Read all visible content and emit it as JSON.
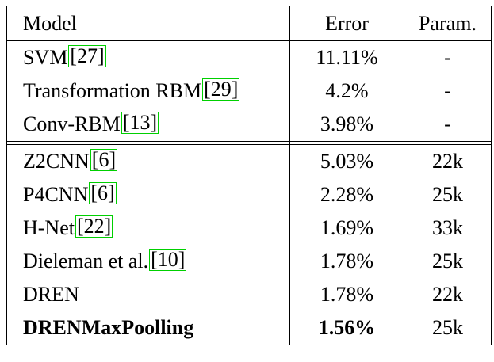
{
  "header": {
    "model": "Model",
    "error": "Error",
    "param": "Param."
  },
  "group1": [
    {
      "name": "SVM",
      "cite": "27",
      "error": "11.11%",
      "param": "-"
    },
    {
      "name": "Transformation RBM",
      "cite": "29",
      "error": "4.2%",
      "param": "-"
    },
    {
      "name": "Conv-RBM",
      "cite": "13",
      "error": "3.98%",
      "param": "-"
    }
  ],
  "group2": [
    {
      "name": "Z2CNN",
      "cite": "6",
      "error": "5.03%",
      "param": "22k"
    },
    {
      "name": "P4CNN",
      "cite": "6",
      "error": "2.28%",
      "param": "25k"
    },
    {
      "name": "H-Net",
      "cite": "22",
      "error": "1.69%",
      "param": "33k"
    },
    {
      "name": "Dieleman et al.",
      "cite": "10",
      "error": "1.78%",
      "param": "25k"
    },
    {
      "name": "DREN",
      "cite": "",
      "error": "1.78%",
      "param": "22k"
    },
    {
      "name": "DRENMaxPoolling",
      "cite": "",
      "error": "1.56%",
      "param": "25k",
      "bold": true
    }
  ],
  "colors": {
    "cite_border": "#00d000",
    "rule": "#000000"
  }
}
